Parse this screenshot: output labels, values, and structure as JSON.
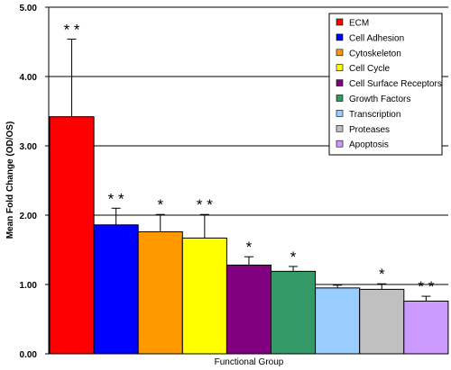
{
  "chart_data": {
    "type": "bar",
    "title": "",
    "xlabel": "Functional Group",
    "ylabel": "Mean Fold Change (OD/OS)",
    "ylim": [
      0,
      5
    ],
    "yticks": [
      "0.00",
      "1.00",
      "2.00",
      "3.00",
      "4.00",
      "5.00"
    ],
    "ytick_values": [
      0,
      1,
      2,
      3,
      4,
      5
    ],
    "grid": true,
    "legend_position": "top-right",
    "series": [
      {
        "name": "ECM",
        "value": 3.42,
        "error": 1.12,
        "color": "#ff0000",
        "significance": "* *"
      },
      {
        "name": "Cell Adhesion",
        "value": 1.86,
        "error": 0.24,
        "color": "#0000ff",
        "significance": "* *"
      },
      {
        "name": "Cytoskeleton",
        "value": 1.76,
        "error": 0.25,
        "color": "#ff9900",
        "significance": "*"
      },
      {
        "name": "Cell Cycle",
        "value": 1.67,
        "error": 0.34,
        "color": "#ffff00",
        "significance": "* *"
      },
      {
        "name": "Cell Surface Receptors",
        "value": 1.28,
        "error": 0.12,
        "color": "#800080",
        "significance": "*"
      },
      {
        "name": "Growth Factors",
        "value": 1.19,
        "error": 0.07,
        "color": "#339966",
        "significance": "*"
      },
      {
        "name": "Transcription",
        "value": 0.95,
        "error": 0.04,
        "color": "#99ccff",
        "significance": ""
      },
      {
        "name": "Proteases",
        "value": 0.93,
        "error": 0.08,
        "color": "#c0c0c0",
        "significance": "*"
      },
      {
        "name": "Apoptosis",
        "value": 0.76,
        "error": 0.07,
        "color": "#cc99ff",
        "significance": "* *"
      }
    ]
  }
}
